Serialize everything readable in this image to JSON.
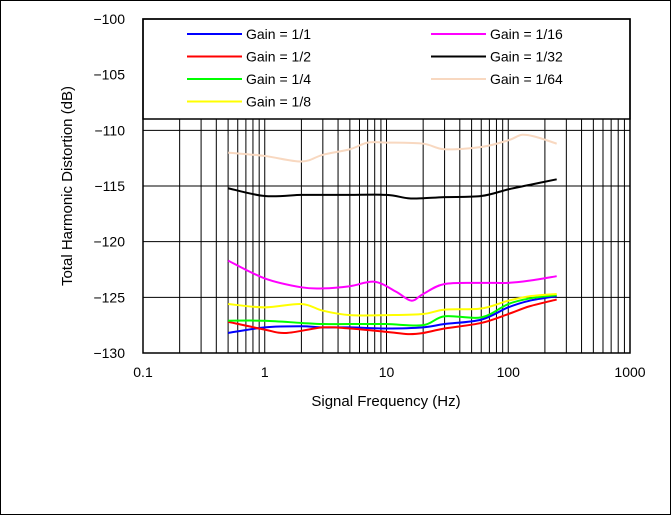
{
  "chart_data": {
    "type": "line",
    "xscale": "log",
    "xlabel": "Signal Frequency (Hz)",
    "ylabel": "Total Harmonic Distortion (dB)",
    "xlim": [
      0.1,
      1000
    ],
    "ylim": [
      -130,
      -100
    ],
    "x_ticks": [
      "0.1",
      "1",
      "10",
      "100",
      "1000"
    ],
    "y_ticks": [
      "−100",
      "−105",
      "−110",
      "−115",
      "−120",
      "−125",
      "−130"
    ],
    "grid": "log-vertical, horizontal every 5 dB",
    "legend_position": "top-inside",
    "series": [
      {
        "name": "Gain = 1/1",
        "color": "#0000ff",
        "x": [
          0.5,
          1,
          2,
          3,
          5,
          10,
          20,
          30,
          60,
          100,
          150,
          250
        ],
        "y": [
          -128.2,
          -127.7,
          -127.6,
          -127.7,
          -127.7,
          -127.8,
          -127.7,
          -127.4,
          -127.0,
          -125.9,
          -125.3,
          -124.9
        ]
      },
      {
        "name": "Gain = 1/2",
        "color": "#ff0000",
        "x": [
          0.5,
          1,
          1.5,
          3,
          5,
          10,
          15,
          20,
          30,
          60,
          100,
          150,
          250
        ],
        "y": [
          -127.2,
          -127.9,
          -128.2,
          -127.7,
          -127.8,
          -128.1,
          -128.3,
          -128.2,
          -127.8,
          -127.3,
          -126.5,
          -125.8,
          -125.2
        ]
      },
      {
        "name": "Gain = 1/4",
        "color": "#00ff00",
        "x": [
          0.5,
          1,
          2,
          3,
          5,
          10,
          20,
          30,
          60,
          100,
          150,
          250
        ],
        "y": [
          -127.1,
          -127.1,
          -127.3,
          -127.4,
          -127.4,
          -127.4,
          -127.5,
          -126.7,
          -126.8,
          -125.6,
          -125.1,
          -124.8
        ]
      },
      {
        "name": "Gain = 1/8",
        "color": "#ffff00",
        "x": [
          0.5,
          1,
          2,
          3,
          5,
          10,
          20,
          30,
          60,
          100,
          150,
          250
        ],
        "y": [
          -125.6,
          -125.9,
          -125.6,
          -126.2,
          -126.6,
          -126.6,
          -126.5,
          -126.1,
          -126.0,
          -125.3,
          -124.9,
          -124.7
        ]
      },
      {
        "name": "Gain = 1/16",
        "color": "#ff00ff",
        "x": [
          0.5,
          1,
          2,
          3,
          5,
          8,
          12,
          16,
          20,
          30,
          60,
          100,
          150,
          250
        ],
        "y": [
          -121.7,
          -123.3,
          -124.1,
          -124.2,
          -124.0,
          -123.6,
          -124.5,
          -125.3,
          -124.7,
          -123.8,
          -123.7,
          -123.7,
          -123.5,
          -123.1
        ]
      },
      {
        "name": "Gain = 1/32",
        "color": "#000000",
        "x": [
          0.5,
          1,
          2,
          3,
          5,
          10,
          15,
          20,
          30,
          60,
          100,
          150,
          250
        ],
        "y": [
          -115.2,
          -115.9,
          -115.8,
          -115.8,
          -115.8,
          -115.8,
          -116.1,
          -116.1,
          -116.0,
          -115.9,
          -115.3,
          -114.9,
          -114.4
        ]
      },
      {
        "name": "Gain = 1/64",
        "color": "#f8d8c0",
        "x": [
          0.5,
          1,
          2,
          3,
          5,
          7,
          10,
          20,
          30,
          60,
          100,
          130,
          170,
          250
        ],
        "y": [
          -112.0,
          -112.3,
          -112.8,
          -112.2,
          -111.7,
          -111.1,
          -111.1,
          -111.2,
          -111.7,
          -111.5,
          -110.9,
          -110.4,
          -110.6,
          -111.2
        ]
      }
    ]
  }
}
